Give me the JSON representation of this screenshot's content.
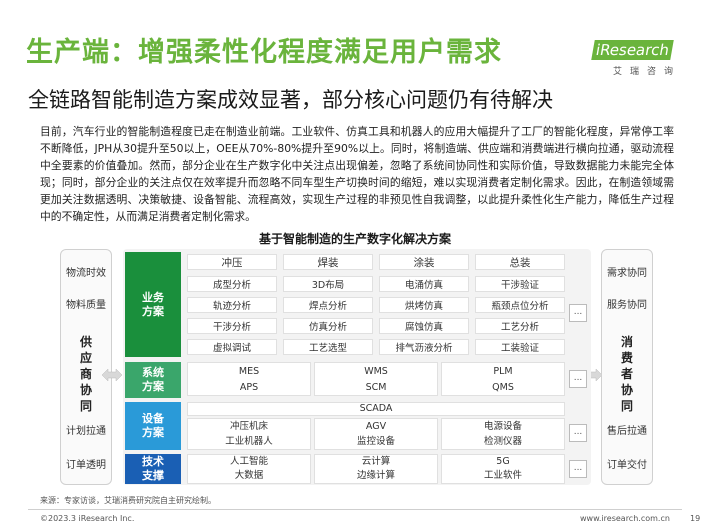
{
  "header": {
    "title": "生产端：增强柔性化程度满足用户需求",
    "subtitle": "全链路智能制造方案成效显著，部分核心问题仍有待解决",
    "logo_main": "iResearch",
    "logo_sub": "艾瑞咨询",
    "brand_color": "#6ab43c"
  },
  "body_text": "目前，汽车行业的智能制造程度已走在制造业前端。工业软件、仿真工具和机器人的应用大幅提升了工厂的智能化程度，异常停工率不断降低，JPH从30提升至50以上，OEE从70%-80%提升至90%以上。同时，将制造端、供应端和消费端进行横向拉通，驱动流程中全要素的价值叠加。然而，部分企业在生产数字化中关注点出现偏差，忽略了系统间协同性和实际价值，导致数据能力未能完全体现；同时，部分企业的关注点仅在效率提升而忽略不同车型生产切换时间的缩短，难以实现消费者定制化需求。因此，在制造领域需更加关注数据透明、决策敏捷、设备智能、流程高效，实现生产过程的非预见性自我调整，以此提升柔性化生产能力，降低生产过程中的不确定性，从而满足消费者定制化需求。",
  "diagram": {
    "title": "基于智能制造的生产数字化解决方案",
    "left": {
      "items_top": [
        "物流时效",
        "物料质量"
      ],
      "vertical": [
        "供",
        "应",
        "商",
        "协",
        "同"
      ],
      "items_bottom": [
        "计划拉通",
        "订单透明"
      ]
    },
    "right": {
      "items_top": [
        "需求协同",
        "服务协同"
      ],
      "vertical": [
        "消",
        "费",
        "者",
        "协",
        "同"
      ],
      "items_bottom": [
        "售后拉通",
        "订单交付"
      ]
    },
    "bands": {
      "business": {
        "label": "业务\n方案",
        "color": "#1a8f3c",
        "columns": [
          "冲压",
          "焊装",
          "涂装",
          "总装"
        ],
        "rows": [
          [
            "成型分析",
            "3D布局",
            "电涌仿真",
            "干涉验证"
          ],
          [
            "轨迹分析",
            "焊点分析",
            "烘烤仿真",
            "瓶颈点位分析"
          ],
          [
            "干涉分析",
            "仿真分析",
            "腐蚀仿真",
            "工艺分析"
          ],
          [
            "虚拟调试",
            "工艺选型",
            "排气沥液分析",
            "工装验证"
          ]
        ]
      },
      "system": {
        "label": "系统\n方案",
        "color": "#3aa66b",
        "rows": [
          [
            "MES",
            "WMS",
            "PLM"
          ],
          [
            "APS",
            "SCM",
            "QMS"
          ]
        ]
      },
      "equipment": {
        "label": "设备\n方案",
        "color": "#2a9ad8",
        "top": "SCADA",
        "rows": [
          [
            "冲压机床",
            "AGV",
            "电源设备"
          ],
          [
            "工业机器人",
            "监控设备",
            "检测仪器"
          ]
        ]
      },
      "tech": {
        "label": "技术\n支撑",
        "color": "#1a5fb4",
        "rows": [
          [
            "人工智能",
            "云计算",
            "5G"
          ],
          [
            "大数据",
            "边缘计算",
            "工业软件"
          ]
        ]
      }
    },
    "more": "..."
  },
  "footer": {
    "source": "来源：专家访谈，艾瑞消费研究院自主研究绘制。",
    "copyright": "©2023.3 iResearch Inc.",
    "site": "www.iresearch.com.cn",
    "page": "19"
  }
}
